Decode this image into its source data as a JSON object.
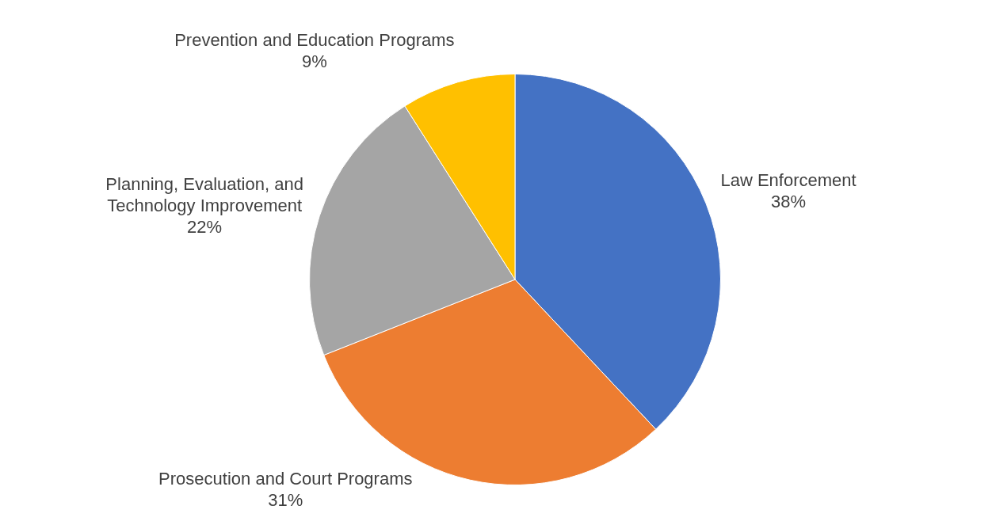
{
  "chart_data": {
    "type": "pie",
    "categories": [
      "Law Enforcement",
      "Prosecution and Court Programs",
      "Planning, Evaluation, and Technology Improvement",
      "Prevention and Education Programs"
    ],
    "values": [
      38,
      31,
      22,
      9
    ],
    "value_labels": [
      "38%",
      "31%",
      "22%",
      "9%"
    ],
    "colors": [
      "#4472c4",
      "#ed7d31",
      "#a5a5a5",
      "#ffc000"
    ],
    "legend": false
  }
}
